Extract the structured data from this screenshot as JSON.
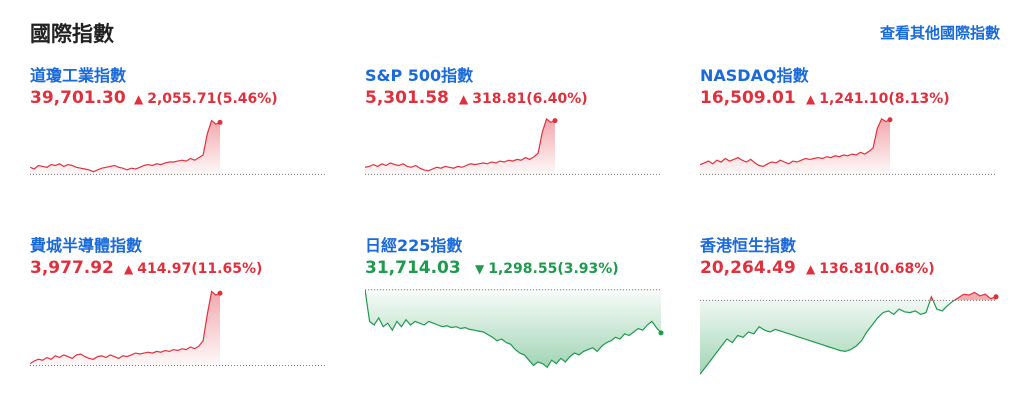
{
  "header": {
    "title": "國際指數",
    "more_link": "查看其他國際指數"
  },
  "colors": {
    "up": "#e0303d",
    "down": "#1f9a4f",
    "link": "#1a6ad9"
  },
  "indices": [
    {
      "name": "道瓊工業指數",
      "price": "39,701.30",
      "change": "2,055.71(5.46%)",
      "direction": "up",
      "arrow": "▲",
      "spark": [
        0.44,
        0.42,
        0.46,
        0.45,
        0.44,
        0.47,
        0.46,
        0.48,
        0.45,
        0.47,
        0.46,
        0.44,
        0.43,
        0.42,
        0.41,
        0.39,
        0.41,
        0.43,
        0.44,
        0.45,
        0.46,
        0.44,
        0.43,
        0.41,
        0.43,
        0.42,
        0.44,
        0.46,
        0.47,
        0.46,
        0.48,
        0.47,
        0.49,
        0.5,
        0.5,
        0.51,
        0.52,
        0.51,
        0.54,
        0.52,
        0.55,
        0.58,
        0.82,
        0.97,
        0.93,
        0.95
      ]
    },
    {
      "name": "S&P 500指數",
      "price": "5,301.58",
      "change": "318.81(6.40%)",
      "direction": "up",
      "arrow": "▲",
      "spark": [
        0.44,
        0.45,
        0.47,
        0.45,
        0.48,
        0.46,
        0.49,
        0.47,
        0.46,
        0.48,
        0.45,
        0.44,
        0.46,
        0.43,
        0.41,
        0.4,
        0.42,
        0.44,
        0.43,
        0.45,
        0.44,
        0.43,
        0.45,
        0.44,
        0.46,
        0.48,
        0.47,
        0.48,
        0.49,
        0.48,
        0.5,
        0.49,
        0.51,
        0.5,
        0.52,
        0.51,
        0.53,
        0.52,
        0.55,
        0.53,
        0.56,
        0.6,
        0.84,
        0.99,
        0.95,
        0.97
      ]
    },
    {
      "name": "NASDAQ指數",
      "price": "16,509.01",
      "change": "1,241.10(8.13%)",
      "direction": "up",
      "arrow": "▲",
      "spark": [
        0.47,
        0.49,
        0.51,
        0.48,
        0.52,
        0.5,
        0.54,
        0.51,
        0.53,
        0.55,
        0.52,
        0.5,
        0.53,
        0.49,
        0.46,
        0.45,
        0.48,
        0.5,
        0.49,
        0.52,
        0.5,
        0.48,
        0.51,
        0.5,
        0.52,
        0.54,
        0.53,
        0.54,
        0.55,
        0.54,
        0.56,
        0.55,
        0.57,
        0.56,
        0.58,
        0.57,
        0.59,
        0.58,
        0.61,
        0.59,
        0.62,
        0.66,
        0.88,
        0.99,
        0.96,
        0.98
      ]
    },
    {
      "name": "費城半導體指數",
      "price": "3,977.92",
      "change": "414.97(11.65%)",
      "direction": "up",
      "arrow": "▲",
      "spark": [
        0.14,
        0.17,
        0.19,
        0.18,
        0.21,
        0.19,
        0.23,
        0.21,
        0.24,
        0.22,
        0.2,
        0.24,
        0.25,
        0.22,
        0.2,
        0.19,
        0.22,
        0.23,
        0.21,
        0.24,
        0.22,
        0.2,
        0.23,
        0.22,
        0.24,
        0.26,
        0.25,
        0.26,
        0.27,
        0.26,
        0.28,
        0.27,
        0.29,
        0.28,
        0.3,
        0.29,
        0.31,
        0.3,
        0.33,
        0.31,
        0.34,
        0.4,
        0.7,
        0.96,
        0.92,
        0.94
      ]
    },
    {
      "name": "日經225指數",
      "price": "31,714.03",
      "change": "1,298.55(3.93%)",
      "direction": "down",
      "arrow": "▼",
      "spark": [
        0.98,
        0.62,
        0.58,
        0.66,
        0.56,
        0.6,
        0.52,
        0.62,
        0.56,
        0.64,
        0.58,
        0.62,
        0.6,
        0.58,
        0.62,
        0.6,
        0.58,
        0.56,
        0.57,
        0.55,
        0.56,
        0.54,
        0.55,
        0.53,
        0.52,
        0.51,
        0.5,
        0.47,
        0.44,
        0.4,
        0.42,
        0.38,
        0.36,
        0.3,
        0.26,
        0.24,
        0.18,
        0.12,
        0.16,
        0.14,
        0.1,
        0.18,
        0.14,
        0.2,
        0.16,
        0.22,
        0.26,
        0.24,
        0.28,
        0.3,
        0.32,
        0.28,
        0.34,
        0.38,
        0.4,
        0.44,
        0.42,
        0.48,
        0.46,
        0.5,
        0.54,
        0.52,
        0.58,
        0.62,
        0.55,
        0.49
      ]
    },
    {
      "name": "香港恒生指數",
      "price": "20,264.49",
      "change": "136.81(0.68%)",
      "direction": "up",
      "arrow": "▲",
      "spark": [
        0.02,
        0.1,
        0.18,
        0.26,
        0.34,
        0.42,
        0.38,
        0.46,
        0.44,
        0.5,
        0.48,
        0.56,
        0.52,
        0.5,
        0.53,
        0.51,
        0.49,
        0.47,
        0.45,
        0.43,
        0.41,
        0.39,
        0.37,
        0.35,
        0.33,
        0.31,
        0.29,
        0.28,
        0.3,
        0.34,
        0.4,
        0.5,
        0.58,
        0.66,
        0.72,
        0.74,
        0.7,
        0.76,
        0.73,
        0.72,
        0.74,
        0.7,
        0.72,
        0.9,
        0.76,
        0.74,
        0.8,
        0.85,
        0.89,
        0.93,
        0.92,
        0.95,
        0.91,
        0.93,
        0.88,
        0.9
      ]
    }
  ]
}
